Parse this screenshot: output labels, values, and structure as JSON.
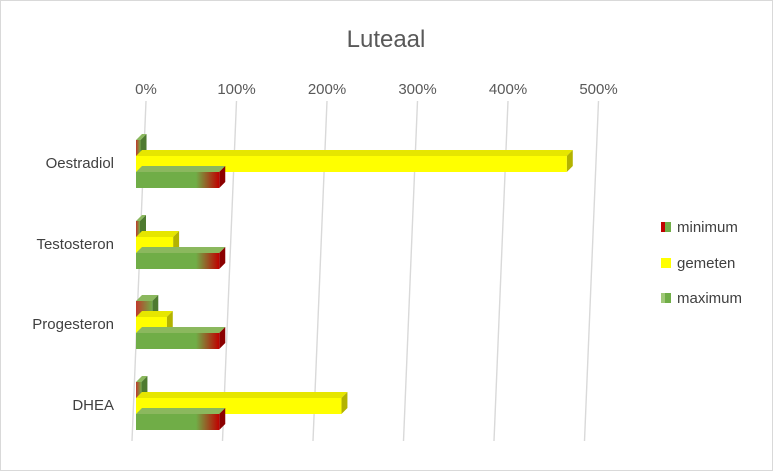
{
  "chart_data": {
    "type": "bar",
    "orientation": "horizontal",
    "title": "Luteaal",
    "xlim": [
      0,
      500
    ],
    "x_ticks": [
      "0%",
      "100%",
      "200%",
      "300%",
      "400%",
      "500%"
    ],
    "x_tick_values": [
      0,
      100,
      200,
      300,
      400,
      500
    ],
    "x_axis_position": "top",
    "grid": true,
    "categories": [
      "Oestradiol",
      "Testosteron",
      "Progesteron",
      "DHEA"
    ],
    "series": [
      {
        "name": "minimum",
        "values": [
          5,
          2,
          18,
          6
        ]
      },
      {
        "name": "gemeten",
        "values": [
          476,
          41,
          34,
          227
        ]
      },
      {
        "name": "maximum",
        "values": [
          92,
          92,
          92,
          92
        ]
      }
    ],
    "legend_position": "right"
  },
  "colors": {
    "minimum_start": "#c0392b",
    "minimum_end": "#70ad47",
    "gemeten": "#ffff00",
    "gemeten_side": "#b3b300",
    "maximum_start": "#70ad47",
    "maximum_end": "#c00000",
    "grid": "#d9d9d9",
    "text": "#595959"
  }
}
